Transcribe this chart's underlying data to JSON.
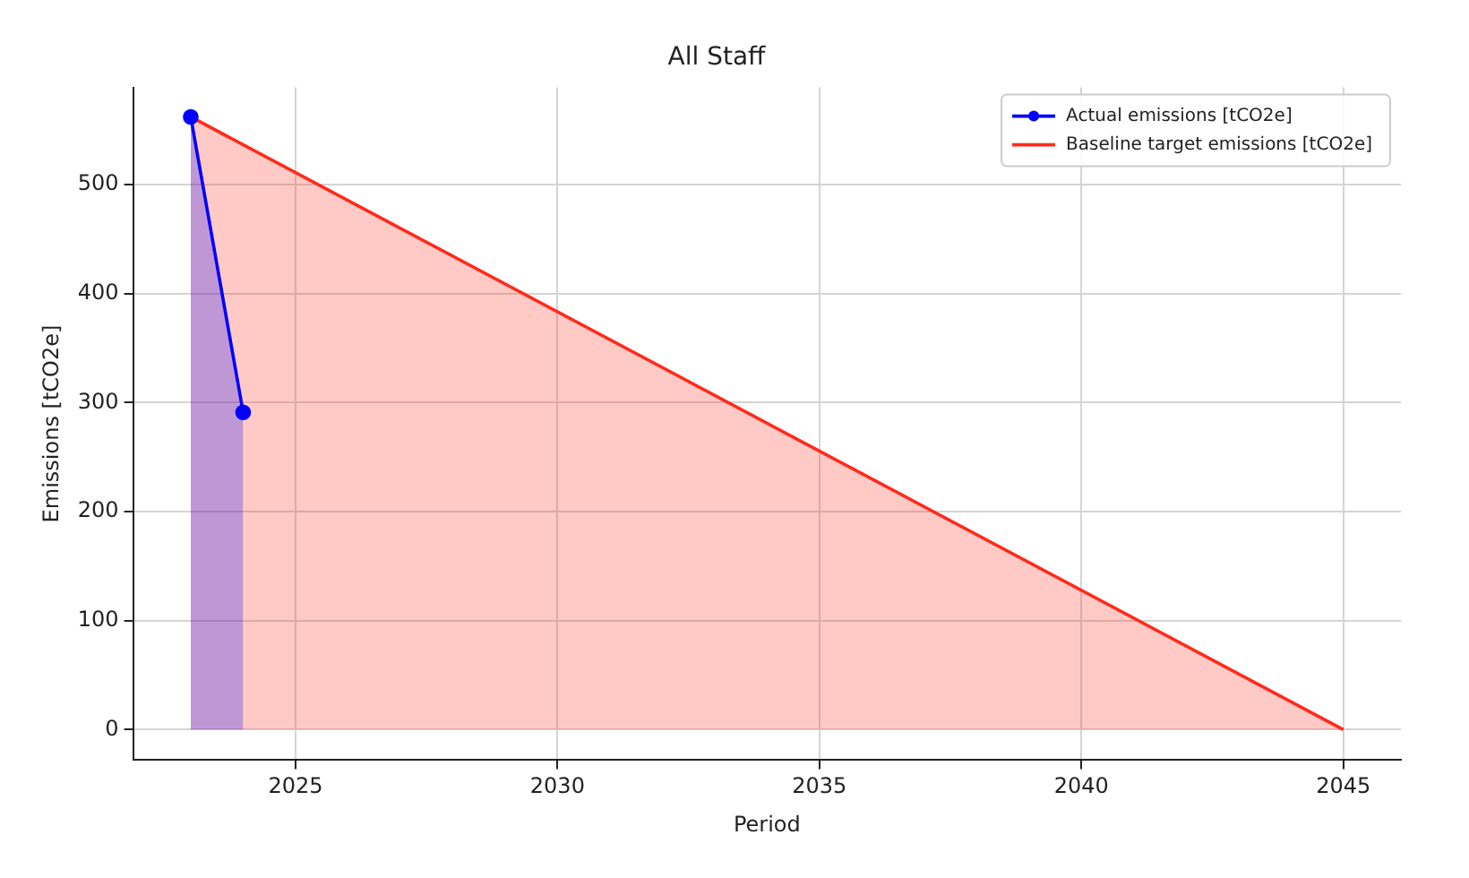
{
  "chart_data": {
    "type": "area",
    "title": "All Staff",
    "xlabel": "Period",
    "ylabel": "Emissions [tCO2e]",
    "series": [
      {
        "name": "Actual emissions [tCO2e]",
        "color": "#0000ff",
        "x": [
          2023,
          2024
        ],
        "values": [
          562,
          291
        ],
        "marker": "circle"
      },
      {
        "name": "Baseline target emissions [tCO2e]",
        "color": "#ff2a1a",
        "x": [
          2023,
          2045
        ],
        "values": [
          562,
          0
        ],
        "marker": "none"
      }
    ],
    "xlim": [
      2021.9,
      2046.1
    ],
    "xticks": [
      2025,
      2030,
      2035,
      2040,
      2045
    ],
    "ylim": [
      -28,
      589
    ],
    "yticks": [
      0,
      100,
      200,
      300,
      400,
      500
    ],
    "grid": true,
    "legend": "top right"
  }
}
